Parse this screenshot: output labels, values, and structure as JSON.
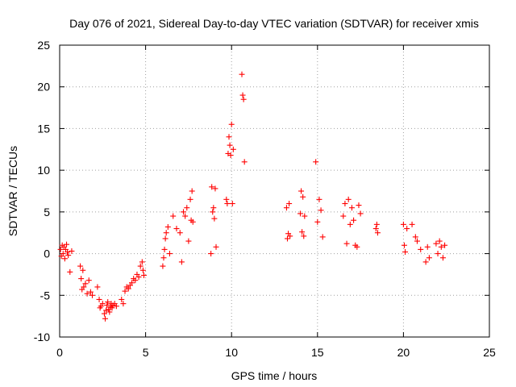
{
  "chart_data": {
    "type": "scatter",
    "title": "Day 076 of 2021, Sidereal Day-to-day VTEC variation (SDTVAR) for receiver xmis",
    "xlabel": "GPS time / hours",
    "ylabel": "SDTVAR / TECUs",
    "xlim": [
      0,
      25
    ],
    "ylim": [
      -10,
      25
    ],
    "x_ticks": [
      0,
      5,
      10,
      15,
      20,
      25
    ],
    "y_ticks": [
      -10,
      -5,
      0,
      5,
      10,
      15,
      20,
      25
    ],
    "grid": true,
    "marker": "+",
    "marker_color": "#ff0000",
    "series": [
      {
        "name": "SDTVAR",
        "x": [
          0.05,
          0.1,
          0.15,
          0.2,
          0.25,
          0.3,
          0.35,
          0.4,
          0.45,
          0.5,
          0.6,
          0.7,
          1.2,
          1.25,
          1.3,
          1.35,
          1.4,
          1.5,
          1.6,
          1.7,
          1.8,
          1.9,
          2.2,
          2.3,
          2.35,
          2.4,
          2.5,
          2.6,
          2.65,
          2.7,
          2.75,
          2.8,
          2.85,
          2.9,
          2.95,
          3.0,
          3.05,
          3.1,
          3.2,
          3.3,
          3.6,
          3.7,
          3.8,
          3.9,
          4.0,
          4.1,
          4.2,
          4.3,
          4.4,
          4.5,
          4.6,
          4.7,
          4.8,
          4.85,
          4.9,
          6.0,
          6.05,
          6.1,
          6.15,
          6.2,
          6.3,
          6.4,
          6.6,
          6.8,
          7.0,
          7.1,
          7.2,
          7.3,
          7.4,
          7.5,
          7.6,
          7.65,
          7.7,
          7.75,
          8.8,
          8.85,
          8.9,
          8.95,
          9.0,
          9.05,
          9.1,
          9.7,
          9.75,
          9.8,
          9.85,
          9.9,
          9.95,
          10.0,
          10.05,
          10.1,
          10.6,
          10.65,
          10.7,
          10.75,
          13.2,
          13.25,
          13.3,
          13.35,
          13.4,
          14.0,
          14.05,
          14.1,
          14.15,
          14.2,
          14.25,
          14.9,
          15.0,
          15.1,
          15.2,
          15.3,
          16.5,
          16.6,
          16.7,
          16.8,
          16.9,
          17.0,
          17.1,
          17.2,
          17.3,
          17.4,
          17.5,
          18.4,
          18.45,
          18.5,
          20.0,
          20.05,
          20.1,
          20.2,
          20.5,
          20.7,
          20.8,
          21.0,
          21.3,
          21.4,
          21.5,
          21.9,
          22.0,
          22.1,
          22.2,
          22.3,
          22.4
        ],
        "y": [
          0.5,
          -0.3,
          1.0,
          0.0,
          0.8,
          -0.6,
          0.5,
          1.1,
          0.2,
          -0.2,
          -2.2,
          0.3,
          -1.5,
          -3.0,
          -4.3,
          -2.0,
          -4.0,
          -3.6,
          -4.8,
          -3.2,
          -4.6,
          -5.0,
          -4.0,
          -5.5,
          -6.5,
          -6.3,
          -6.0,
          -7.2,
          -7.8,
          -6.8,
          -6.2,
          -5.8,
          -6.7,
          -7.0,
          -6.4,
          -6.0,
          -6.5,
          -6.2,
          -6.0,
          -6.3,
          -5.5,
          -6.0,
          -4.5,
          -4.0,
          -4.2,
          -3.8,
          -3.5,
          -3.0,
          -3.2,
          -2.5,
          -2.8,
          -1.5,
          -1.0,
          -2.0,
          -2.6,
          -1.5,
          -0.5,
          0.5,
          1.8,
          2.5,
          3.2,
          0.0,
          4.5,
          3.0,
          2.5,
          -1.0,
          5.0,
          4.5,
          5.5,
          1.5,
          6.5,
          4.0,
          7.5,
          3.8,
          0.0,
          8.0,
          5.0,
          5.5,
          4.2,
          7.8,
          0.8,
          6.5,
          6.0,
          12.0,
          14.0,
          13.0,
          11.8,
          15.5,
          6.0,
          12.5,
          21.5,
          19.0,
          18.5,
          11.0,
          5.5,
          1.8,
          2.4,
          6.0,
          2.1,
          4.8,
          7.5,
          2.6,
          6.8,
          2.1,
          4.5,
          11.0,
          3.8,
          6.5,
          5.2,
          2.0,
          4.5,
          6.0,
          1.2,
          6.5,
          3.5,
          5.5,
          4.0,
          1.0,
          0.8,
          5.8,
          4.8,
          3.0,
          3.5,
          2.5,
          3.5,
          1.0,
          0.2,
          3.0,
          3.5,
          2.0,
          1.5,
          0.5,
          -1.0,
          0.8,
          -0.5,
          1.2,
          0.0,
          1.5,
          0.8,
          -0.5,
          1.0
        ]
      }
    ]
  }
}
